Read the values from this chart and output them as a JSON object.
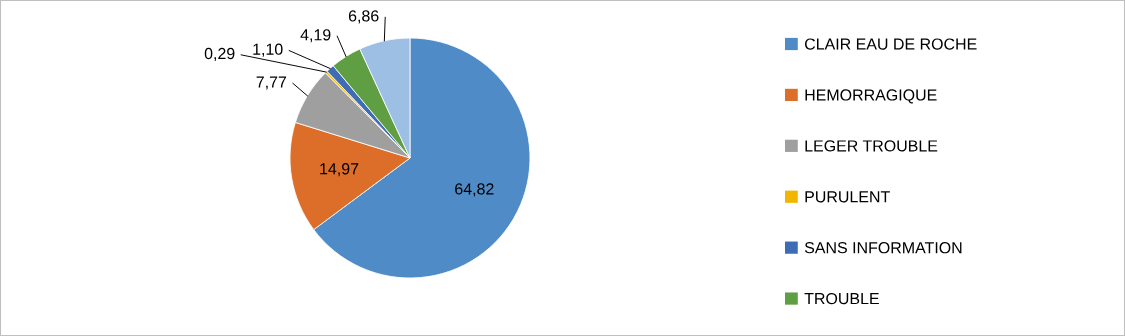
{
  "chart_data": {
    "type": "pie",
    "categories": [
      "CLAIR EAU DE ROCHE",
      "HEMORRAGIQUE",
      "LEGER TROUBLE",
      "PURULENT",
      "SANS INFORMATION",
      "TROUBLE",
      null
    ],
    "values": [
      64.82,
      14.97,
      7.77,
      0.29,
      1.1,
      4.19,
      6.86
    ],
    "value_labels": [
      "64,82",
      "14,97",
      "7,77",
      "0,29",
      "1,10",
      "4,19",
      "6,86"
    ],
    "colors": [
      "#4f8bc6",
      "#dc6e2a",
      "#9f9f9f",
      "#f2b600",
      "#3f6db5",
      "#5f9e42",
      "#9dbfe3"
    ],
    "legend": "right"
  }
}
